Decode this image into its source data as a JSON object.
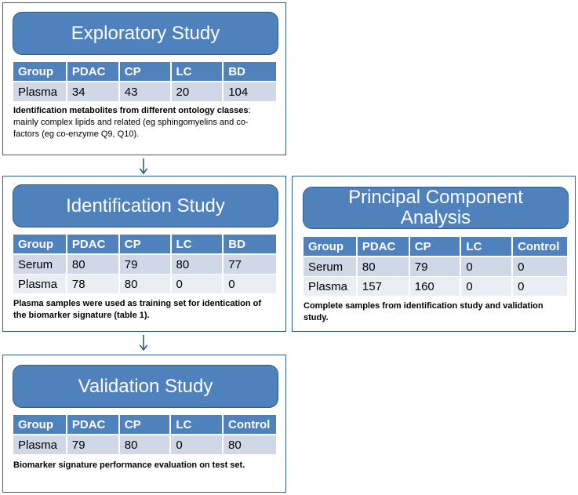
{
  "exploratory": {
    "title": "Exploratory Study",
    "headers": [
      "Group",
      "PDAC",
      "CP",
      "LC",
      "BD"
    ],
    "rows": [
      [
        "Plasma",
        "34",
        "43",
        "20",
        "104"
      ]
    ],
    "note_bold": "Identification metabolites from different ontology classes",
    "note_text": ": mainly complex lipids and related (eg sphingomyelins and co-factors (eg  co-enzyme Q9, Q10)."
  },
  "identification": {
    "title": "Identification Study",
    "headers": [
      "Group",
      "PDAC",
      "CP",
      "LC",
      "BD"
    ],
    "rows": [
      [
        "Serum",
        "80",
        "79",
        "80",
        "77"
      ],
      [
        "Plasma",
        "78",
        "80",
        "0",
        "0"
      ]
    ],
    "note": "Plasma samples were used as training set for identication of the biomarker signature (table 1)."
  },
  "validation": {
    "title": "Validation Study",
    "headers": [
      "Group",
      "PDAC",
      "CP",
      "LC",
      "Control"
    ],
    "rows": [
      [
        "Plasma",
        "79",
        "80",
        "0",
        "80"
      ]
    ],
    "note": "Biomarker signature performance evaluation on test set."
  },
  "pca": {
    "title_line1": "Principal Component",
    "title_line2": "Analysis",
    "headers": [
      "Group",
      "PDAC",
      "CP",
      "LC",
      "Control"
    ],
    "rows": [
      [
        "Serum",
        "80",
        "79",
        "0",
        "0"
      ],
      [
        "Plasma",
        "157",
        "160",
        "0",
        "0"
      ]
    ],
    "note": "Complete samples from identification study and validation study."
  },
  "colors": {
    "banner": "#4f81bd",
    "border": "#2f5c8a",
    "row_dark": "#d0d8e8",
    "row_light": "#e9edf4"
  }
}
